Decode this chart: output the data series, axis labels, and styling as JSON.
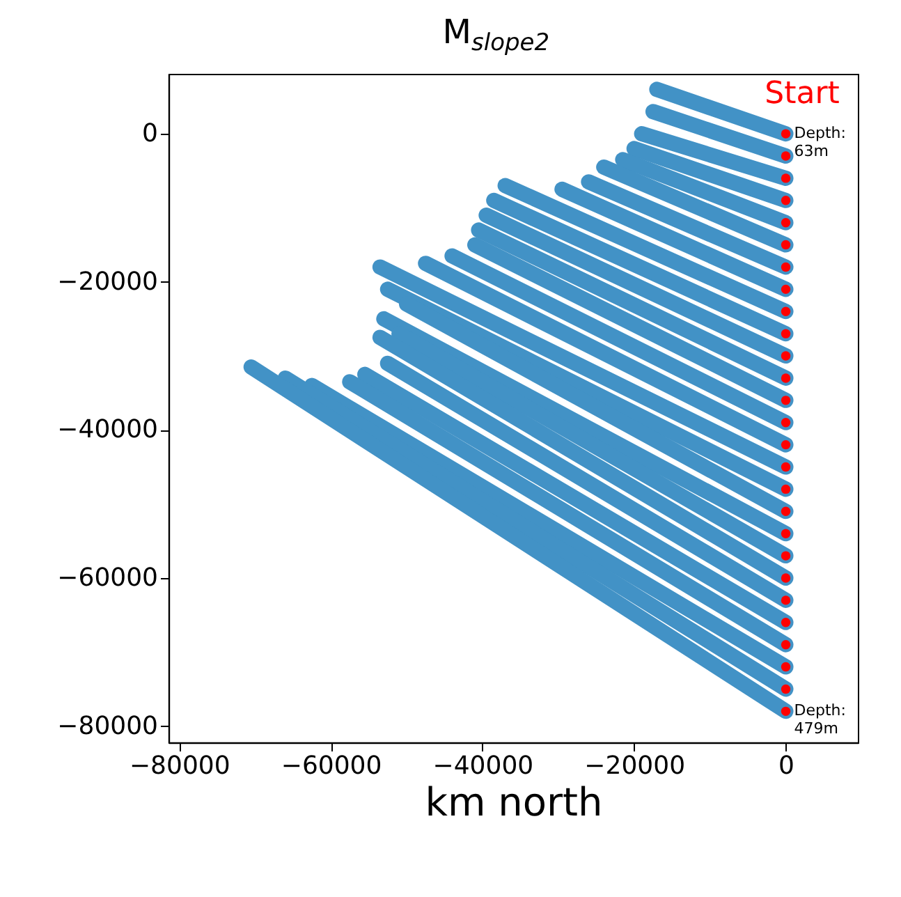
{
  "chart_data": {
    "type": "line",
    "title": "M$_{slope2}$",
    "xlabel": "km north",
    "xlim": [
      -81400,
      9500
    ],
    "ylim": [
      -82200,
      8100
    ],
    "xticks": [
      -80000,
      -60000,
      -40000,
      -20000,
      0
    ],
    "yticks": [
      -80000,
      -60000,
      -40000,
      -20000,
      0
    ],
    "grid": false,
    "line_style": "solid",
    "series": [
      {
        "color": "#4292c6",
        "x": [
          0,
          -17000
        ],
        "values": [
          0,
          6000
        ]
      },
      {
        "color": "#4292c6",
        "x": [
          0,
          -17500
        ],
        "values": [
          -3000,
          3000
        ]
      },
      {
        "color": "#4292c6",
        "x": [
          0,
          -19000
        ],
        "values": [
          -6000,
          0
        ]
      },
      {
        "color": "#4292c6",
        "x": [
          0,
          -20000
        ],
        "values": [
          -9000,
          -2000
        ]
      },
      {
        "color": "#4292c6",
        "x": [
          0,
          -21500
        ],
        "values": [
          -12000,
          -3500
        ]
      },
      {
        "color": "#4292c6",
        "x": [
          0,
          -24000
        ],
        "values": [
          -15000,
          -4500
        ]
      },
      {
        "color": "#4292c6",
        "x": [
          0,
          -26000
        ],
        "values": [
          -18000,
          -6500
        ]
      },
      {
        "color": "#4292c6",
        "x": [
          0,
          -29500
        ],
        "values": [
          -21000,
          -7500
        ]
      },
      {
        "color": "#4292c6",
        "x": [
          0,
          -37000
        ],
        "values": [
          -24000,
          -7000
        ]
      },
      {
        "color": "#4292c6",
        "x": [
          0,
          -38500
        ],
        "values": [
          -27000,
          -9000
        ]
      },
      {
        "color": "#4292c6",
        "x": [
          0,
          -39500
        ],
        "values": [
          -30000,
          -11000
        ]
      },
      {
        "color": "#4292c6",
        "x": [
          0,
          -40500
        ],
        "values": [
          -33000,
          -13000
        ]
      },
      {
        "color": "#4292c6",
        "x": [
          0,
          -41000
        ],
        "values": [
          -36000,
          -15000
        ]
      },
      {
        "color": "#4292c6",
        "x": [
          0,
          -44000
        ],
        "values": [
          -39000,
          -16500
        ]
      },
      {
        "color": "#4292c6",
        "x": [
          0,
          -47500
        ],
        "values": [
          -42000,
          -17500
        ]
      },
      {
        "color": "#4292c6",
        "x": [
          0,
          -53500
        ],
        "values": [
          -45000,
          -18000
        ]
      },
      {
        "color": "#4292c6",
        "x": [
          0,
          -52500
        ],
        "values": [
          -48000,
          -21000
        ]
      },
      {
        "color": "#4292c6",
        "x": [
          0,
          -50000
        ],
        "values": [
          -51000,
          -23000
        ]
      },
      {
        "color": "#4292c6",
        "x": [
          0,
          -53000
        ],
        "values": [
          -54000,
          -25000
        ]
      },
      {
        "color": "#4292c6",
        "x": [
          0,
          -51000
        ],
        "values": [
          -57000,
          -27000
        ]
      },
      {
        "color": "#4292c6",
        "x": [
          0,
          -53500
        ],
        "values": [
          -60000,
          -27500
        ]
      },
      {
        "color": "#4292c6",
        "x": [
          0,
          -52500
        ],
        "values": [
          -63000,
          -31000
        ]
      },
      {
        "color": "#4292c6",
        "x": [
          0,
          -55500
        ],
        "values": [
          -66000,
          -32500
        ]
      },
      {
        "color": "#4292c6",
        "x": [
          0,
          -57500
        ],
        "values": [
          -69000,
          -33500
        ]
      },
      {
        "color": "#4292c6",
        "x": [
          0,
          -62500
        ],
        "values": [
          -72000,
          -34000
        ]
      },
      {
        "color": "#4292c6",
        "x": [
          0,
          -66000
        ],
        "values": [
          -75000,
          -33000
        ]
      },
      {
        "color": "#4292c6",
        "x": [
          0,
          -70500
        ],
        "values": [
          -78000,
          -31500
        ]
      },
      {
        "type": "scatter",
        "color": "#ff0000",
        "marker": "circle",
        "x": [
          0,
          0,
          0,
          0,
          0,
          0,
          0,
          0,
          0,
          0,
          0,
          0,
          0,
          0,
          0,
          0,
          0,
          0,
          0,
          0,
          0,
          0,
          0,
          0,
          0,
          0,
          0
        ],
        "values": [
          0,
          -3000,
          -6000,
          -9000,
          -12000,
          -15000,
          -18000,
          -21000,
          -24000,
          -27000,
          -30000,
          -33000,
          -36000,
          -39000,
          -42000,
          -45000,
          -48000,
          -51000,
          -54000,
          -57000,
          -60000,
          -63000,
          -66000,
          -69000,
          -72000,
          -75000,
          -78000
        ]
      }
    ],
    "annotations": [
      "Start",
      {
        "text": "Depth:\n63m",
        "x": 0,
        "y": 0
      },
      {
        "text": "Depth:\n479m",
        "x": 0,
        "y": -78000
      }
    ]
  }
}
